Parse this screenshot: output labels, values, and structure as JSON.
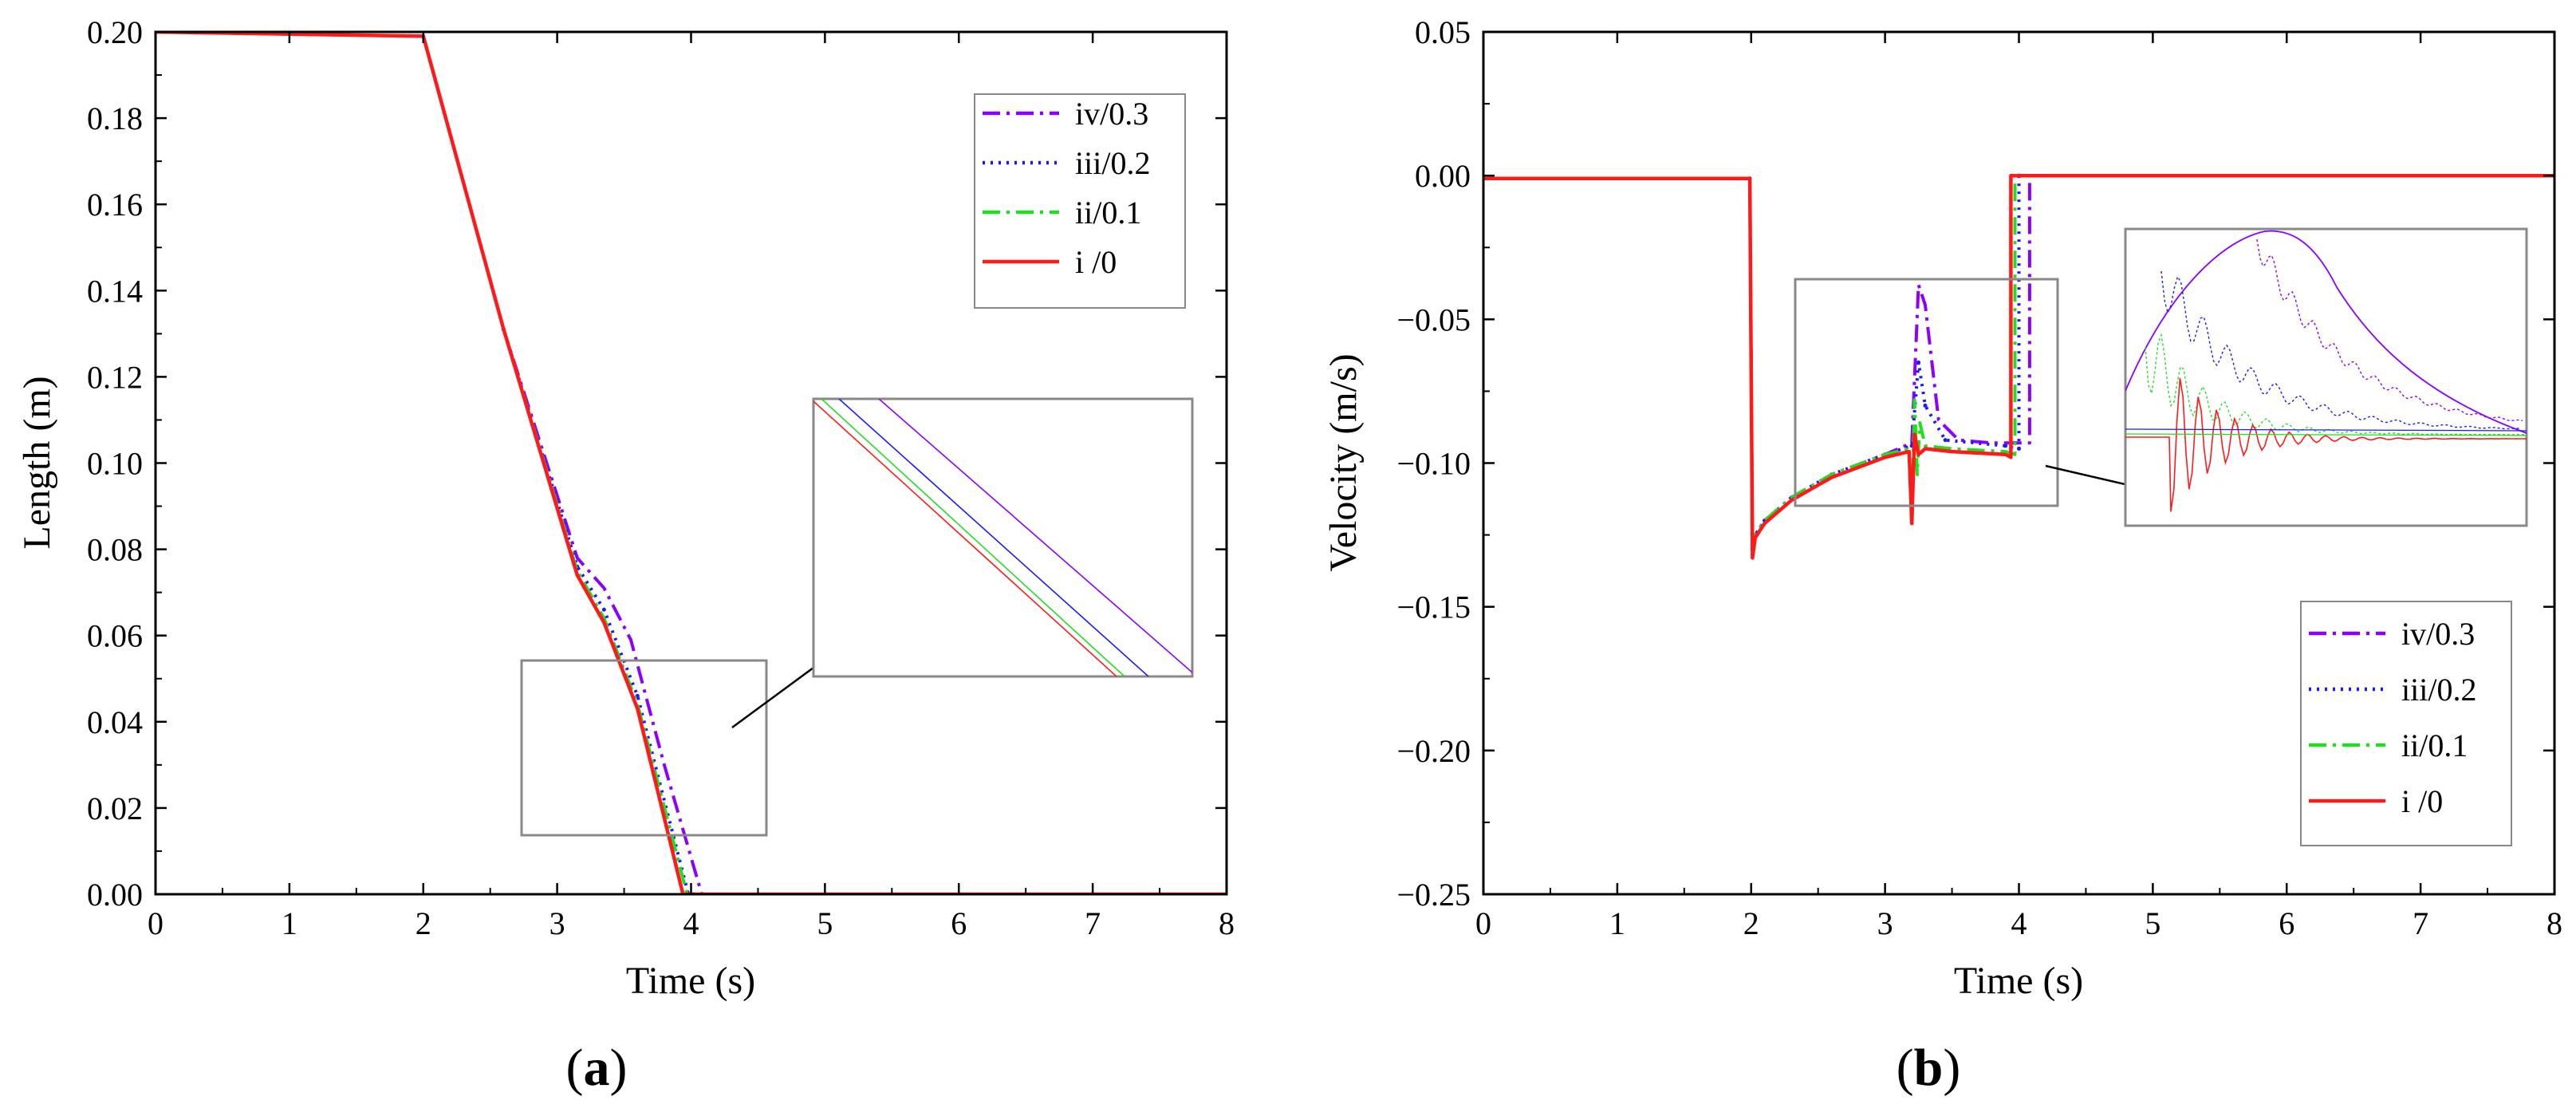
{
  "colors": {
    "iv": "#8B00FF",
    "iii": "#1A1AFF",
    "ii": "#22DD22",
    "i": "#FF1A1A",
    "box": "#888888"
  },
  "chart_data": [
    {
      "id": "a",
      "type": "line",
      "panel_label": "a",
      "xlabel": "Time (s)",
      "ylabel": "Length (m)",
      "xlim": [
        0,
        8
      ],
      "ylim": [
        0,
        0.2
      ],
      "xticks": [
        0,
        1,
        2,
        3,
        4,
        5,
        6,
        7,
        8
      ],
      "xtick_labels": [
        "0",
        "1",
        "2",
        "3",
        "4",
        "5",
        "6",
        "7",
        "8"
      ],
      "yticks": [
        0,
        0.02,
        0.04,
        0.06,
        0.08,
        0.1,
        0.12,
        0.14,
        0.16,
        0.18,
        0.2
      ],
      "ytick_labels": [
        "0.00",
        "0.02",
        "0.04",
        "0.06",
        "0.08",
        "0.10",
        "0.12",
        "0.14",
        "0.16",
        "0.18",
        "0.20"
      ],
      "legend_position": "top-right",
      "legend": [
        "iv/0.3",
        "iii/0.2",
        "ii/0.1",
        "i /0"
      ],
      "series": [
        {
          "key": "iv",
          "name": "iv/0.3",
          "style": "dashdot",
          "x": [
            0,
            2,
            2.6,
            3.15,
            3.35,
            3.55,
            3.8,
            4.08,
            4.12,
            8
          ],
          "y": [
            0.2,
            0.199,
            0.131,
            0.078,
            0.071,
            0.059,
            0.03,
            0.0,
            0.0,
            0.0
          ]
        },
        {
          "key": "iii",
          "name": "iii/0.2",
          "style": "dotted",
          "x": [
            0,
            2,
            2.6,
            3.15,
            3.35,
            3.6,
            3.98,
            4.02,
            8
          ],
          "y": [
            0.2,
            0.199,
            0.131,
            0.076,
            0.066,
            0.046,
            0.0,
            0.0,
            0.0
          ]
        },
        {
          "key": "ii",
          "name": "ii/0.1",
          "style": "dashdot",
          "x": [
            0,
            2,
            2.6,
            3.15,
            3.35,
            3.6,
            3.97,
            4.0,
            8
          ],
          "y": [
            0.2,
            0.199,
            0.131,
            0.075,
            0.064,
            0.044,
            0.0,
            0.0,
            0.0
          ]
        },
        {
          "key": "i",
          "name": "i /0",
          "style": "solid",
          "x": [
            0,
            2,
            2.6,
            3.15,
            3.35,
            3.6,
            3.94,
            3.98,
            8
          ],
          "y": [
            0.2,
            0.199,
            0.131,
            0.074,
            0.063,
            0.043,
            0.0,
            0.0,
            0.0
          ]
        }
      ],
      "zoom_region": {
        "x": [
          2.75,
          4.6
        ],
        "y": [
          0.0135,
          0.0545
        ]
      }
    },
    {
      "id": "b",
      "type": "line",
      "panel_label": "b",
      "xlabel": "Time (s)",
      "ylabel": "Velocity (m/s)",
      "xlim": [
        0,
        8
      ],
      "ylim": [
        -0.25,
        0.05
      ],
      "xticks": [
        0,
        1,
        2,
        3,
        4,
        5,
        6,
        7,
        8
      ],
      "xtick_labels": [
        "0",
        "1",
        "2",
        "3",
        "4",
        "5",
        "6",
        "7",
        "8"
      ],
      "yticks": [
        -0.25,
        -0.2,
        -0.15,
        -0.1,
        -0.05,
        0.0,
        0.05
      ],
      "ytick_labels": [
        "−0.25",
        "−0.20",
        "−0.15",
        "−0.10",
        "−0.05",
        "0.00",
        "0.05"
      ],
      "legend_position": "bottom-right",
      "legend": [
        "iv/0.3",
        "iii/0.2",
        "ii/0.1",
        "i /0"
      ],
      "series": [
        {
          "key": "iv",
          "name": "iv/0.3",
          "style": "dashdot",
          "x": [
            0,
            1.99,
            2.01,
            2.03,
            2.1,
            2.3,
            2.6,
            3.0,
            3.2,
            3.25,
            3.3,
            3.4,
            3.55,
            3.8,
            4.08,
            4.08,
            8
          ],
          "y": [
            -0.001,
            -0.001,
            -0.13,
            -0.125,
            -0.12,
            -0.112,
            -0.104,
            -0.097,
            -0.093,
            -0.038,
            -0.045,
            -0.085,
            -0.092,
            -0.093,
            -0.093,
            0.0,
            0.0
          ]
        },
        {
          "key": "iii",
          "name": "iii/0.2",
          "style": "dotted",
          "x": [
            0,
            1.99,
            2.01,
            2.03,
            2.1,
            2.3,
            2.6,
            3.0,
            3.2,
            3.25,
            3.3,
            3.45,
            3.9,
            4.0,
            4.0,
            8
          ],
          "y": [
            -0.001,
            -0.001,
            -0.13,
            -0.125,
            -0.12,
            -0.112,
            -0.104,
            -0.097,
            -0.094,
            -0.065,
            -0.08,
            -0.092,
            -0.094,
            -0.095,
            0.0,
            0.0
          ]
        },
        {
          "key": "ii",
          "name": "ii/0.1",
          "style": "dashdot",
          "x": [
            0,
            1.99,
            2.01,
            2.03,
            2.1,
            2.3,
            2.6,
            3.0,
            3.18,
            3.2,
            3.22,
            3.24,
            3.26,
            3.3,
            3.5,
            3.9,
            3.97,
            3.97,
            8
          ],
          "y": [
            -0.001,
            -0.001,
            -0.13,
            -0.125,
            -0.12,
            -0.112,
            -0.104,
            -0.097,
            -0.095,
            -0.118,
            -0.078,
            -0.104,
            -0.086,
            -0.094,
            -0.095,
            -0.096,
            -0.097,
            0.0,
            0.0
          ]
        },
        {
          "key": "i",
          "name": "i /0",
          "style": "solid",
          "x": [
            0,
            1.99,
            2.01,
            2.03,
            2.1,
            2.3,
            2.6,
            3.0,
            3.18,
            3.2,
            3.22,
            3.25,
            3.3,
            3.5,
            3.9,
            3.94,
            3.94,
            8
          ],
          "y": [
            -0.001,
            -0.001,
            -0.133,
            -0.126,
            -0.121,
            -0.113,
            -0.105,
            -0.098,
            -0.096,
            -0.121,
            -0.09,
            -0.097,
            -0.095,
            -0.096,
            -0.097,
            -0.098,
            0.0,
            0.0
          ]
        }
      ],
      "zoom_region": {
        "x": [
          2.35,
          4.3
        ],
        "y": [
          -0.1145,
          -0.0355
        ]
      }
    }
  ]
}
